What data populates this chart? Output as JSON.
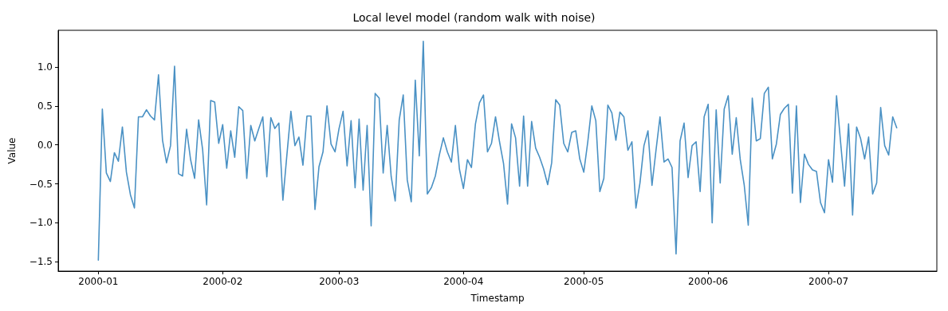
{
  "chart_data": {
    "type": "line",
    "title": "Local level model (random walk with noise)",
    "xlabel": "Timestamp",
    "ylabel": "Value",
    "x": [
      "2000-01-01",
      "2000-01-02",
      "2000-01-03",
      "2000-01-04",
      "2000-01-05",
      "2000-01-06",
      "2000-01-07",
      "2000-01-08",
      "2000-01-09",
      "2000-01-10",
      "2000-01-11",
      "2000-01-12",
      "2000-01-13",
      "2000-01-14",
      "2000-01-15",
      "2000-01-16",
      "2000-01-17",
      "2000-01-18",
      "2000-01-19",
      "2000-01-20",
      "2000-01-21",
      "2000-01-22",
      "2000-01-23",
      "2000-01-24",
      "2000-01-25",
      "2000-01-26",
      "2000-01-27",
      "2000-01-28",
      "2000-01-29",
      "2000-01-30",
      "2000-01-31",
      "2000-02-01",
      "2000-02-02",
      "2000-02-03",
      "2000-02-04",
      "2000-02-05",
      "2000-02-06",
      "2000-02-07",
      "2000-02-08",
      "2000-02-09",
      "2000-02-10",
      "2000-02-11",
      "2000-02-12",
      "2000-02-13",
      "2000-02-14",
      "2000-02-15",
      "2000-02-16",
      "2000-02-17",
      "2000-02-18",
      "2000-02-19",
      "2000-02-20",
      "2000-02-21",
      "2000-02-22",
      "2000-02-23",
      "2000-02-24",
      "2000-02-25",
      "2000-02-26",
      "2000-02-27",
      "2000-02-28",
      "2000-02-29",
      "2000-03-01",
      "2000-03-02",
      "2000-03-03",
      "2000-03-04",
      "2000-03-05",
      "2000-03-06",
      "2000-03-07",
      "2000-03-08",
      "2000-03-09",
      "2000-03-10",
      "2000-03-11",
      "2000-03-12",
      "2000-03-13",
      "2000-03-14",
      "2000-03-15",
      "2000-03-16",
      "2000-03-17",
      "2000-03-18",
      "2000-03-19",
      "2000-03-20",
      "2000-03-21",
      "2000-03-22",
      "2000-03-23",
      "2000-03-24",
      "2000-03-25",
      "2000-03-26",
      "2000-03-27",
      "2000-03-28",
      "2000-03-29",
      "2000-03-30",
      "2000-03-31",
      "2000-04-01",
      "2000-04-02",
      "2000-04-03",
      "2000-04-04",
      "2000-04-05",
      "2000-04-06",
      "2000-04-07",
      "2000-04-08",
      "2000-04-09",
      "2000-04-10",
      "2000-04-11",
      "2000-04-12",
      "2000-04-13",
      "2000-04-14",
      "2000-04-15",
      "2000-04-16",
      "2000-04-17",
      "2000-04-18",
      "2000-04-19",
      "2000-04-20",
      "2000-04-21",
      "2000-04-22",
      "2000-04-23",
      "2000-04-24",
      "2000-04-25",
      "2000-04-26",
      "2000-04-27",
      "2000-04-28",
      "2000-04-29",
      "2000-04-30",
      "2000-05-01",
      "2000-05-02",
      "2000-05-03",
      "2000-05-04",
      "2000-05-05",
      "2000-05-06",
      "2000-05-07",
      "2000-05-08",
      "2000-05-09",
      "2000-05-10",
      "2000-05-11",
      "2000-05-12",
      "2000-05-13",
      "2000-05-14",
      "2000-05-15",
      "2000-05-16",
      "2000-05-17",
      "2000-05-18",
      "2000-05-19",
      "2000-05-20",
      "2000-05-21",
      "2000-05-22",
      "2000-05-23",
      "2000-05-24",
      "2000-05-25",
      "2000-05-26",
      "2000-05-27",
      "2000-05-28",
      "2000-05-29",
      "2000-05-30",
      "2000-05-31",
      "2000-06-01",
      "2000-06-02",
      "2000-06-03",
      "2000-06-04",
      "2000-06-05",
      "2000-06-06",
      "2000-06-07",
      "2000-06-08",
      "2000-06-09",
      "2000-06-10",
      "2000-06-11",
      "2000-06-12",
      "2000-06-13",
      "2000-06-14",
      "2000-06-15",
      "2000-06-16",
      "2000-06-17",
      "2000-06-18",
      "2000-06-19",
      "2000-06-20",
      "2000-06-21",
      "2000-06-22",
      "2000-06-23",
      "2000-06-24",
      "2000-06-25",
      "2000-06-26",
      "2000-06-27",
      "2000-06-28",
      "2000-06-29",
      "2000-06-30",
      "2000-07-01",
      "2000-07-02",
      "2000-07-03",
      "2000-07-04",
      "2000-07-05",
      "2000-07-06",
      "2000-07-07",
      "2000-07-08",
      "2000-07-09",
      "2000-07-10",
      "2000-07-11",
      "2000-07-12",
      "2000-07-13",
      "2000-07-14",
      "2000-07-15",
      "2000-07-16",
      "2000-07-17",
      "2000-07-18"
    ],
    "series": [
      {
        "color": "#4a91c4",
        "values": [
          -1.48,
          0.46,
          -0.36,
          -0.47,
          -0.1,
          -0.21,
          0.23,
          -0.35,
          -0.64,
          -0.81,
          0.36,
          0.36,
          0.45,
          0.37,
          0.32,
          0.9,
          0.06,
          -0.23,
          -0.01,
          1.01,
          -0.37,
          -0.4,
          0.2,
          -0.19,
          -0.43,
          0.32,
          -0.06,
          -0.77,
          0.57,
          0.55,
          0.02,
          0.26,
          -0.3,
          0.18,
          -0.16,
          0.49,
          0.44,
          -0.43,
          0.25,
          0.05,
          0.21,
          0.36,
          -0.41,
          0.35,
          0.21,
          0.28,
          -0.71,
          -0.13,
          0.43,
          -0.01,
          0.1,
          -0.26,
          0.37,
          0.37,
          -0.83,
          -0.28,
          -0.09,
          0.5,
          0.01,
          -0.09,
          0.21,
          0.43,
          -0.27,
          0.31,
          -0.55,
          0.33,
          -0.58,
          0.25,
          -1.04,
          0.66,
          0.6,
          -0.36,
          0.25,
          -0.41,
          -0.72,
          0.32,
          0.64,
          -0.45,
          -0.73,
          0.83,
          -0.14,
          1.33,
          -0.63,
          -0.55,
          -0.4,
          -0.13,
          0.09,
          -0.09,
          -0.22,
          0.25,
          -0.31,
          -0.56,
          -0.19,
          -0.29,
          0.27,
          0.54,
          0.64,
          -0.09,
          0.02,
          0.36,
          0.04,
          -0.24,
          -0.76,
          0.27,
          0.09,
          -0.53,
          0.37,
          -0.53,
          0.3,
          -0.04,
          -0.16,
          -0.31,
          -0.51,
          -0.23,
          0.58,
          0.51,
          0.02,
          -0.09,
          0.16,
          0.18,
          -0.18,
          -0.35,
          0.04,
          0.5,
          0.31,
          -0.6,
          -0.43,
          0.51,
          0.41,
          0.06,
          0.42,
          0.36,
          -0.07,
          0.04,
          -0.81,
          -0.49,
          -0.01,
          0.18,
          -0.52,
          -0.07,
          0.36,
          -0.22,
          -0.18,
          -0.29,
          -1.4,
          0.05,
          0.28,
          -0.42,
          -0.01,
          0.04,
          -0.6,
          0.36,
          0.52,
          -1.0,
          0.45,
          -0.49,
          0.46,
          0.63,
          -0.12,
          0.35,
          -0.19,
          -0.52,
          -1.03,
          0.6,
          0.05,
          0.08,
          0.66,
          0.74,
          -0.18,
          0.01,
          0.39,
          0.47,
          0.52,
          -0.62,
          0.5,
          -0.74,
          -0.12,
          -0.25,
          -0.32,
          -0.34,
          -0.74,
          -0.87,
          -0.19,
          -0.48,
          0.63,
          0.04,
          -0.53,
          0.27,
          -0.9,
          0.23,
          0.08,
          -0.18,
          0.1,
          -0.63,
          -0.49,
          0.48,
          -0.01,
          -0.13,
          0.36,
          0.22
        ]
      }
    ],
    "xlim": [
      "1999-12-22",
      "2000-07-28"
    ],
    "xticks": [
      "2000-01",
      "2000-02",
      "2000-03",
      "2000-04",
      "2000-05",
      "2000-06",
      "2000-07"
    ],
    "ylim": [
      -1.62,
      1.47
    ],
    "yticks": [
      {
        "value": -1.5,
        "label": "−1.5"
      },
      {
        "value": -1.0,
        "label": "−1.0"
      },
      {
        "value": -0.5,
        "label": "−0.5"
      },
      {
        "value": 0,
        "label": "0.0"
      },
      {
        "value": 0.5,
        "label": "0.5"
      },
      {
        "value": 1.0,
        "label": "1.0"
      }
    ],
    "grid": false,
    "marker": "none",
    "line_style": "solid"
  }
}
